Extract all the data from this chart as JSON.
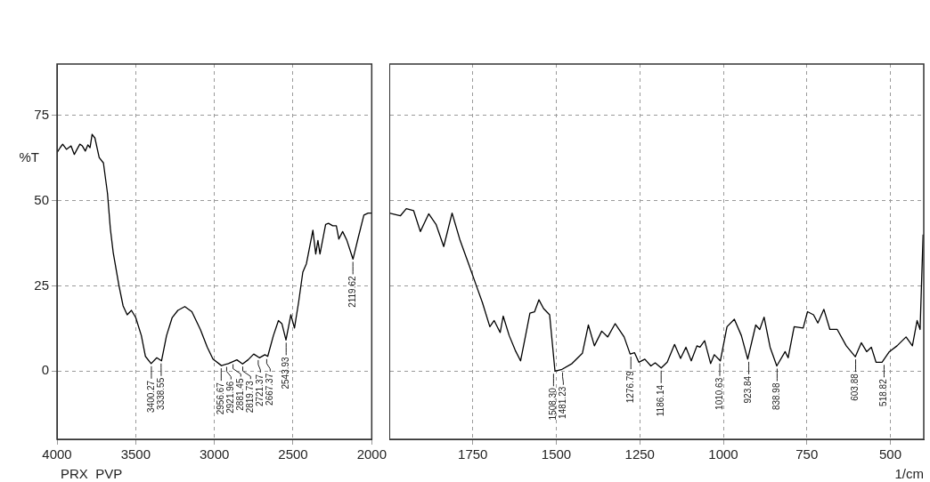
{
  "chart_data": [
    {
      "type": "line",
      "ylabel": "%T",
      "xlim": [
        4000,
        2000
      ],
      "xticks": [
        4000,
        3500,
        3000,
        2500,
        2000
      ],
      "ylim": [
        -20,
        90
      ],
      "yticks": [
        0,
        25,
        50,
        75
      ],
      "grid": true,
      "legend": false,
      "marker": "none",
      "series": [
        {
          "color": "#000000",
          "x": [
            4000,
            3980,
            3964,
            3940,
            3911,
            3890,
            3875,
            3855,
            3839,
            3820,
            3804,
            3790,
            3777,
            3759,
            3732,
            3705,
            3679,
            3661,
            3643,
            3607,
            3580,
            3554,
            3527,
            3500,
            3464,
            3438,
            3402,
            3366,
            3336,
            3304,
            3268,
            3232,
            3188,
            3143,
            3089,
            3045,
            3009,
            2955,
            2911,
            2857,
            2821,
            2786,
            2750,
            2714,
            2679,
            2661,
            2625,
            2593,
            2571,
            2545,
            2514,
            2491,
            2464,
            2438,
            2415,
            2374,
            2356,
            2342,
            2329,
            2293,
            2275,
            2248,
            2225,
            2209,
            2185,
            2158,
            2119,
            2086,
            2050,
            2023,
            2000
          ],
          "values": [
            64,
            65.5,
            66.5,
            65,
            66,
            63.5,
            64.8,
            66.5,
            66,
            64.5,
            66.3,
            65.5,
            69.4,
            68.3,
            62.6,
            61,
            52,
            41.7,
            34.8,
            25.2,
            19.1,
            16.5,
            17.8,
            15.7,
            10.4,
            4.3,
            2.2,
            3.9,
            3,
            10.4,
            15.7,
            17.8,
            18.9,
            17.4,
            12.2,
            7,
            3.5,
            1.6,
            2.2,
            3.3,
            2.1,
            3.3,
            5,
            3.9,
            4.8,
            4.3,
            10.4,
            14.8,
            13.9,
            9.1,
            16.5,
            12.6,
            20.4,
            29,
            31.5,
            41.3,
            34.3,
            38.3,
            34.3,
            43,
            43.3,
            42.6,
            42.6,
            38.7,
            40.9,
            38.3,
            32.8,
            39.1,
            45.7,
            46.3,
            46.3
          ]
        }
      ],
      "annotations": [
        "PRX  PVP",
        {
          "text": "3400.27",
          "x": 3400.27,
          "y": 2.2
        },
        {
          "text": "3338.55",
          "x": 3338.55,
          "y": 3
        },
        {
          "text": "2956.67",
          "x": 2956.67,
          "y": 1.6
        },
        {
          "text": "2921.96",
          "x": 2921.96,
          "y": 2
        },
        {
          "text": "2881.45",
          "x": 2881.45,
          "y": 2.8
        },
        {
          "text": "2819.73",
          "x": 2819.73,
          "y": 2.1
        },
        {
          "text": "2721.37",
          "x": 2721.37,
          "y": 4
        },
        {
          "text": "2667.37",
          "x": 2667.37,
          "y": 4.3
        },
        {
          "text": "2543.93",
          "x": 2543.93,
          "y": 9.1
        },
        {
          "text": "2119.62",
          "x": 2119.62,
          "y": 32.8
        }
      ]
    },
    {
      "type": "line",
      "xlabel": "1/cm",
      "xlim": [
        2000,
        400
      ],
      "xticks": [
        1750,
        1500,
        1250,
        1000,
        750,
        500
      ],
      "ylim": [
        -20,
        90
      ],
      "yticks": [
        0,
        25,
        50,
        75
      ],
      "tick_labels": "x",
      "grid": true,
      "legend": false,
      "marker": "none",
      "series": [
        {
          "color": "#000000",
          "x": [
            2000,
            1967,
            1949,
            1927,
            1907,
            1882,
            1860,
            1837,
            1812,
            1788,
            1762,
            1740,
            1721,
            1699,
            1686,
            1668,
            1659,
            1641,
            1623,
            1607,
            1592,
            1579,
            1565,
            1552,
            1538,
            1520,
            1504,
            1485,
            1453,
            1422,
            1404,
            1386,
            1364,
            1346,
            1324,
            1297,
            1279,
            1266,
            1253,
            1235,
            1217,
            1204,
            1186,
            1168,
            1146,
            1128,
            1112,
            1096,
            1079,
            1070,
            1056,
            1038,
            1027,
            1009,
            989,
            967,
            946,
            927,
            903,
            891,
            878,
            860,
            840,
            815,
            806,
            788,
            761,
            748,
            730,
            717,
            699,
            681,
            659,
            632,
            605,
            587,
            571,
            557,
            543,
            525,
            503,
            480,
            453,
            434,
            420,
            411,
            402
          ],
          "values": [
            46.3,
            45.5,
            47.6,
            47,
            40.9,
            46.1,
            43,
            36.5,
            46.3,
            38.3,
            31.3,
            25.2,
            20,
            13,
            14.8,
            11.3,
            16.1,
            10.4,
            6.1,
            3,
            10.4,
            17,
            17.4,
            20.9,
            18.3,
            16.5,
            0,
            0.4,
            2.2,
            5.2,
            13.5,
            7.4,
            11.7,
            10,
            13.9,
            10,
            5,
            5.4,
            2.6,
            3.5,
            1.5,
            2.4,
            0.9,
            2.6,
            7.8,
            3.7,
            7,
            3,
            7.4,
            7,
            8.9,
            2.2,
            4.8,
            3,
            13,
            15.2,
            10.4,
            3.5,
            13.5,
            12.2,
            15.8,
            7,
            1.5,
            5.7,
            3.9,
            13,
            12.6,
            17.4,
            16.5,
            14.1,
            18.1,
            12.2,
            12.2,
            7.4,
            4.2,
            8.3,
            5.7,
            7,
            2.6,
            2.6,
            5.7,
            7.4,
            10,
            7.4,
            14.8,
            12.2,
            40
          ]
        }
      ],
      "annotations": [
        {
          "text": "1508.30",
          "x": 1508.3,
          "y": 0
        },
        {
          "text": "1481.23",
          "x": 1481.23,
          "y": 0.4
        },
        {
          "text": "1276.79",
          "x": 1276.79,
          "y": 5
        },
        {
          "text": "1186.14",
          "x": 1186.14,
          "y": 0.9
        },
        {
          "text": "1010.63",
          "x": 1010.63,
          "y": 3
        },
        {
          "text": "923.84",
          "x": 923.84,
          "y": 3.5
        },
        {
          "text": "838.98",
          "x": 838.98,
          "y": 1.5
        },
        {
          "text": "603.88",
          "x": 603.88,
          "y": 4.2
        },
        {
          "text": "518.82",
          "x": 518.82,
          "y": 2.6
        }
      ]
    }
  ]
}
